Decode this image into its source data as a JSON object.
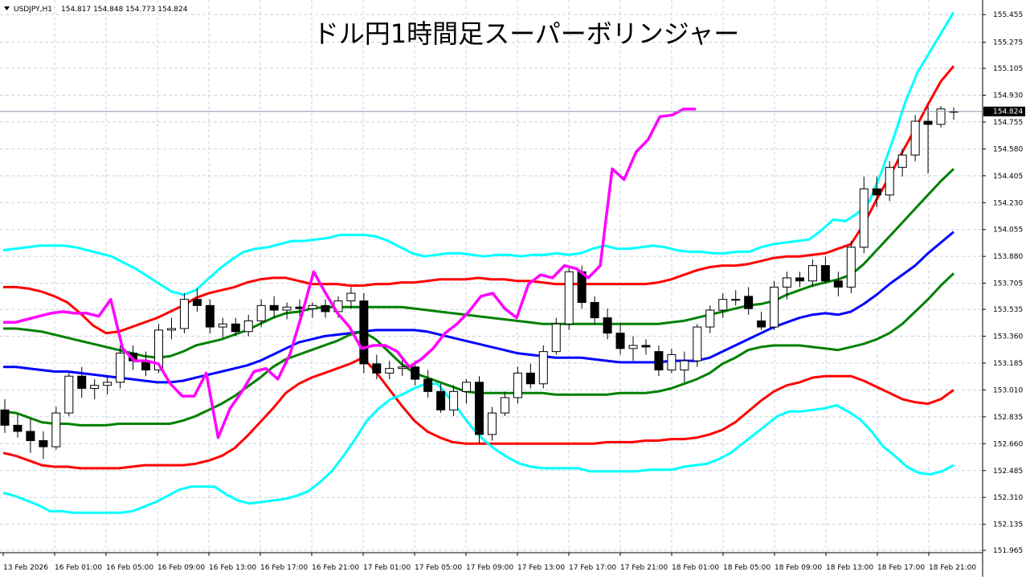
{
  "header": {
    "symbol_text": "USDJPY,H1",
    "ohlc_text": "154.817 154.848 154.773 154.824",
    "collapse_icon": "triangle-down-icon"
  },
  "chart_title": "ドル円1時間足スーパーボリンジャー",
  "current_price_label": "154.824",
  "colors": {
    "background": "#ffffff",
    "grid": "#c8d4e0",
    "candle_up": "#ffffff",
    "candle_down": "#000000",
    "sma": "#0000ff",
    "band1": "#008000",
    "band2": "#ff0000",
    "band3": "#00ffff",
    "chikou": "#ff00ff",
    "current_price_line": "#8a9bb0"
  },
  "chart_data": {
    "type": "line",
    "title": "ドル円1時間足スーパーボリンジャー",
    "ylim": [
      151.95,
      155.55
    ],
    "y_ticks": [
      "155.455",
      "155.275",
      "155.105",
      "154.930",
      "154.755",
      "154.580",
      "154.405",
      "154.230",
      "154.055",
      "153.880",
      "153.705",
      "153.535",
      "153.360",
      "153.185",
      "153.010",
      "152.835",
      "152.660",
      "152.485",
      "152.310",
      "152.135",
      "151.965"
    ],
    "x_tick_labels": [
      "13 Feb 2026",
      "16 Feb 01:00",
      "16 Feb 05:00",
      "16 Feb 09:00",
      "16 Feb 13:00",
      "16 Feb 17:00",
      "16 Feb 21:00",
      "17 Feb 01:00",
      "17 Feb 05:00",
      "17 Feb 09:00",
      "17 Feb 13:00",
      "17 Feb 17:00",
      "17 Feb 21:00",
      "18 Feb 01:00",
      "18 Feb 05:00",
      "18 Feb 09:00",
      "18 Feb 13:00",
      "18 Feb 17:00",
      "18 Feb 21:00"
    ],
    "current_price": 154.824,
    "candles": [
      [
        152.88,
        152.95,
        152.73,
        152.78
      ],
      [
        152.78,
        152.85,
        152.7,
        152.74
      ],
      [
        152.74,
        152.82,
        152.6,
        152.68
      ],
      [
        152.68,
        152.74,
        152.56,
        152.64
      ],
      [
        152.64,
        152.9,
        152.62,
        152.86
      ],
      [
        152.86,
        153.12,
        152.84,
        153.1
      ],
      [
        153.1,
        153.16,
        152.96,
        153.02
      ],
      [
        153.02,
        153.08,
        152.95,
        153.04
      ],
      [
        153.04,
        153.1,
        152.98,
        153.06
      ],
      [
        153.06,
        153.3,
        153.02,
        153.25
      ],
      [
        153.25,
        153.3,
        153.14,
        153.2
      ],
      [
        153.2,
        153.26,
        153.1,
        153.14
      ],
      [
        153.14,
        153.44,
        153.12,
        153.4
      ],
      [
        153.4,
        153.48,
        153.34,
        153.41
      ],
      [
        153.41,
        153.64,
        153.38,
        153.6
      ],
      [
        153.6,
        153.67,
        153.52,
        153.56
      ],
      [
        153.56,
        153.6,
        153.38,
        153.42
      ],
      [
        153.42,
        153.48,
        153.35,
        153.44
      ],
      [
        153.44,
        153.48,
        153.36,
        153.39
      ],
      [
        153.39,
        153.5,
        153.36,
        153.46
      ],
      [
        153.46,
        153.6,
        153.42,
        153.56
      ],
      [
        153.56,
        153.62,
        153.48,
        153.53
      ],
      [
        153.53,
        153.58,
        153.47,
        153.55
      ],
      [
        153.55,
        153.6,
        153.49,
        153.54
      ],
      [
        153.54,
        153.58,
        153.48,
        153.56
      ],
      [
        153.56,
        153.6,
        153.48,
        153.52
      ],
      [
        153.52,
        153.62,
        153.48,
        153.59
      ],
      [
        153.59,
        153.68,
        153.54,
        153.64
      ],
      [
        153.59,
        153.64,
        153.12,
        153.18
      ],
      [
        153.18,
        153.24,
        153.08,
        153.12
      ],
      [
        153.12,
        153.2,
        153.08,
        153.15
      ],
      [
        153.15,
        153.22,
        153.1,
        153.16
      ],
      [
        153.16,
        153.2,
        153.04,
        153.08
      ],
      [
        153.08,
        153.14,
        152.96,
        153.0
      ],
      [
        153.0,
        153.05,
        152.86,
        152.88
      ],
      [
        152.88,
        153.04,
        152.84,
        153.0
      ],
      [
        153.0,
        153.08,
        152.92,
        153.06
      ],
      [
        153.06,
        153.1,
        152.66,
        152.72
      ],
      [
        152.72,
        152.9,
        152.68,
        152.86
      ],
      [
        152.86,
        153.0,
        152.84,
        152.96
      ],
      [
        152.96,
        153.16,
        152.92,
        153.12
      ],
      [
        153.12,
        153.18,
        153.02,
        153.05
      ],
      [
        153.05,
        153.3,
        153.02,
        153.26
      ],
      [
        153.26,
        153.48,
        153.24,
        153.44
      ],
      [
        153.44,
        153.82,
        153.4,
        153.78
      ],
      [
        153.78,
        153.82,
        153.54,
        153.58
      ],
      [
        153.58,
        153.62,
        153.44,
        153.48
      ],
      [
        153.48,
        153.54,
        153.34,
        153.38
      ],
      [
        153.38,
        153.44,
        153.24,
        153.28
      ],
      [
        153.28,
        153.36,
        153.2,
        153.3
      ],
      [
        153.3,
        153.34,
        153.24,
        153.29
      ],
      [
        153.26,
        153.3,
        153.1,
        153.14
      ],
      [
        153.14,
        153.28,
        153.12,
        153.24
      ],
      [
        153.14,
        153.26,
        153.06,
        153.2
      ],
      [
        153.2,
        153.44,
        153.16,
        153.42
      ],
      [
        153.42,
        153.56,
        153.38,
        153.53
      ],
      [
        153.53,
        153.64,
        153.48,
        153.6
      ],
      [
        153.6,
        153.66,
        153.56,
        153.6
      ],
      [
        153.62,
        153.68,
        153.5,
        153.54
      ],
      [
        153.46,
        153.52,
        153.4,
        153.42
      ],
      [
        153.42,
        153.72,
        153.4,
        153.68
      ],
      [
        153.68,
        153.78,
        153.6,
        153.74
      ],
      [
        153.74,
        153.78,
        153.68,
        153.72
      ],
      [
        153.72,
        153.86,
        153.68,
        153.82
      ],
      [
        153.82,
        153.88,
        153.7,
        153.72
      ],
      [
        153.72,
        153.78,
        153.62,
        153.68
      ],
      [
        153.68,
        153.98,
        153.64,
        153.94
      ],
      [
        153.94,
        154.4,
        153.9,
        154.32
      ],
      [
        154.32,
        154.4,
        154.2,
        154.28
      ],
      [
        154.28,
        154.5,
        154.24,
        154.46
      ],
      [
        154.46,
        154.58,
        154.4,
        154.54
      ],
      [
        154.54,
        154.8,
        154.5,
        154.76
      ],
      [
        154.76,
        154.86,
        154.42,
        154.74
      ],
      [
        154.74,
        154.86,
        154.72,
        154.84
      ],
      [
        154.82,
        154.85,
        154.77,
        154.824
      ]
    ],
    "series": [
      {
        "name": "",
        "color": "#0000ff",
        "values": [
          153.16,
          153.16,
          153.15,
          153.14,
          153.13,
          153.13,
          153.12,
          153.11,
          153.1,
          153.09,
          153.08,
          153.07,
          153.06,
          153.06,
          153.07,
          153.09,
          153.11,
          153.13,
          153.15,
          153.17,
          153.2,
          153.24,
          153.28,
          153.32,
          153.34,
          153.36,
          153.37,
          153.38,
          153.39,
          153.4,
          153.4,
          153.4,
          153.4,
          153.39,
          153.37,
          153.35,
          153.33,
          153.31,
          153.29,
          153.27,
          153.25,
          153.24,
          153.23,
          153.22,
          153.22,
          153.22,
          153.21,
          153.2,
          153.19,
          153.19,
          153.19,
          153.19,
          153.2,
          153.2,
          153.2,
          153.22,
          153.26,
          153.3,
          153.34,
          153.38,
          153.42,
          153.45,
          153.48,
          153.5,
          153.51,
          153.5,
          153.52,
          153.57,
          153.63,
          153.7,
          153.76,
          153.82,
          153.9,
          153.97,
          154.04
        ]
      },
      {
        "name": "",
        "color": "#008000",
        "values": [
          152.87,
          152.86,
          152.83,
          152.8,
          152.79,
          152.79,
          152.78,
          152.78,
          152.78,
          152.79,
          152.79,
          152.79,
          152.79,
          152.79,
          152.81,
          152.84,
          152.88,
          152.92,
          152.97,
          153.03,
          153.09,
          153.16,
          153.21,
          153.24,
          153.27,
          153.3,
          153.33,
          153.37,
          153.39,
          153.34,
          153.26,
          153.18,
          153.12,
          153.09,
          153.06,
          153.03,
          153.0,
          152.99,
          152.99,
          152.99,
          152.99,
          152.99,
          152.99,
          152.98,
          152.98,
          152.98,
          152.98,
          152.98,
          152.99,
          152.99,
          152.99,
          153.0,
          153.02,
          153.05,
          153.08,
          153.12,
          153.18,
          153.22,
          153.27,
          153.29,
          153.3,
          153.3,
          153.3,
          153.29,
          153.28,
          153.27,
          153.29,
          153.31,
          153.34,
          153.38,
          153.44,
          153.52,
          153.6,
          153.69,
          153.77
        ]
      },
      {
        "name": "",
        "color": "#008000",
        "values": [
          153.41,
          153.41,
          153.4,
          153.39,
          153.37,
          153.35,
          153.33,
          153.31,
          153.29,
          153.27,
          153.25,
          153.23,
          153.22,
          153.23,
          153.26,
          153.3,
          153.32,
          153.34,
          153.37,
          153.4,
          153.44,
          153.48,
          153.51,
          153.52,
          153.54,
          153.55,
          153.55,
          153.55,
          153.55,
          153.55,
          153.55,
          153.55,
          153.54,
          153.53,
          153.52,
          153.51,
          153.5,
          153.49,
          153.48,
          153.47,
          153.46,
          153.45,
          153.44,
          153.44,
          153.44,
          153.44,
          153.44,
          153.44,
          153.44,
          153.44,
          153.44,
          153.44,
          153.45,
          153.46,
          153.48,
          153.5,
          153.52,
          153.54,
          153.56,
          153.57,
          153.59,
          153.63,
          153.66,
          153.69,
          153.71,
          153.73,
          153.76,
          153.83,
          153.92,
          154.01,
          154.1,
          154.19,
          154.28,
          154.37,
          154.45
        ]
      },
      {
        "name": "",
        "color": "#ff0000",
        "values": [
          152.6,
          152.58,
          152.55,
          152.52,
          152.51,
          152.51,
          152.5,
          152.5,
          152.5,
          152.5,
          152.51,
          152.52,
          152.52,
          152.52,
          152.52,
          152.53,
          152.55,
          152.58,
          152.63,
          152.71,
          152.8,
          152.89,
          152.99,
          153.05,
          153.09,
          153.12,
          153.15,
          153.18,
          153.22,
          153.13,
          153.02,
          152.91,
          152.81,
          152.74,
          152.7,
          152.67,
          152.66,
          152.66,
          152.66,
          152.66,
          152.66,
          152.66,
          152.66,
          152.66,
          152.66,
          152.66,
          152.66,
          152.67,
          152.67,
          152.67,
          152.68,
          152.68,
          152.69,
          152.69,
          152.7,
          152.72,
          152.75,
          152.8,
          152.87,
          152.94,
          153.0,
          153.04,
          153.06,
          153.09,
          153.1,
          153.1,
          153.1,
          153.07,
          153.03,
          152.99,
          152.95,
          152.93,
          152.92,
          152.95,
          153.01
        ]
      },
      {
        "name": "",
        "color": "#ff0000",
        "values": [
          153.68,
          153.68,
          153.67,
          153.65,
          153.62,
          153.58,
          153.51,
          153.43,
          153.38,
          153.39,
          153.42,
          153.45,
          153.48,
          153.52,
          153.56,
          153.61,
          153.64,
          153.66,
          153.68,
          153.71,
          153.73,
          153.74,
          153.74,
          153.72,
          153.7,
          153.7,
          153.7,
          153.69,
          153.69,
          153.7,
          153.7,
          153.71,
          153.71,
          153.72,
          153.73,
          153.73,
          153.73,
          153.74,
          153.73,
          153.73,
          153.72,
          153.72,
          153.71,
          153.7,
          153.7,
          153.7,
          153.7,
          153.7,
          153.7,
          153.7,
          153.7,
          153.71,
          153.73,
          153.76,
          153.79,
          153.81,
          153.82,
          153.82,
          153.83,
          153.85,
          153.87,
          153.88,
          153.88,
          153.89,
          153.9,
          153.93,
          153.96,
          154.09,
          154.25,
          154.4,
          154.56,
          154.71,
          154.87,
          155.02,
          155.12
        ]
      },
      {
        "name": "",
        "color": "#00ffff",
        "values": [
          152.34,
          152.32,
          152.29,
          152.26,
          152.22,
          152.22,
          152.21,
          152.21,
          152.21,
          152.21,
          152.21,
          152.22,
          152.25,
          152.28,
          152.32,
          152.36,
          152.38,
          152.38,
          152.38,
          152.33,
          152.29,
          152.27,
          152.28,
          152.29,
          152.3,
          152.32,
          152.35,
          152.41,
          152.48,
          152.58,
          152.69,
          152.81,
          152.89,
          152.95,
          152.98,
          153.02,
          153.05,
          153.05,
          152.96,
          152.86,
          152.76,
          152.68,
          152.62,
          152.57,
          152.53,
          152.51,
          152.5,
          152.5,
          152.5,
          152.5,
          152.48,
          152.48,
          152.48,
          152.48,
          152.48,
          152.49,
          152.49,
          152.49,
          152.51,
          152.52,
          152.53,
          152.56,
          152.6,
          152.66,
          152.72,
          152.78,
          152.84,
          152.87,
          152.87,
          152.88,
          152.89,
          152.91,
          152.87,
          152.82,
          152.74,
          152.64,
          152.58,
          152.51,
          152.47,
          152.46,
          152.48,
          152.52
        ]
      },
      {
        "name": "",
        "color": "#00ffff",
        "values": [
          153.92,
          153.93,
          153.94,
          153.95,
          153.95,
          153.95,
          153.94,
          153.92,
          153.9,
          153.88,
          153.84,
          153.8,
          153.75,
          153.7,
          153.65,
          153.63,
          153.66,
          153.73,
          153.8,
          153.86,
          153.91,
          153.93,
          153.94,
          153.96,
          153.98,
          153.98,
          153.99,
          154.0,
          154.02,
          154.02,
          154.02,
          154.01,
          153.98,
          153.94,
          153.9,
          153.88,
          153.89,
          153.9,
          153.9,
          153.89,
          153.88,
          153.89,
          153.89,
          153.88,
          153.89,
          153.89,
          153.9,
          153.89,
          153.9,
          153.93,
          153.95,
          153.93,
          153.93,
          153.94,
          153.95,
          153.94,
          153.92,
          153.91,
          153.91,
          153.9,
          153.9,
          153.91,
          153.91,
          153.94,
          153.96,
          153.97,
          153.98,
          153.99,
          154.05,
          154.12,
          154.11,
          154.16,
          154.24,
          154.43,
          154.65,
          154.89,
          155.08,
          155.21,
          155.34,
          155.47
        ]
      },
      {
        "name": "",
        "color": "#ff00ff",
        "values": [
          153.45,
          153.45,
          153.47,
          153.49,
          153.51,
          153.52,
          153.51,
          153.51,
          153.49,
          153.6,
          153.28,
          153.2,
          153.2,
          153.18,
          153.05,
          152.97,
          152.97,
          153.12,
          152.7,
          152.89,
          153.0,
          153.13,
          153.15,
          153.08,
          153.24,
          153.5,
          153.78,
          153.64,
          153.51,
          153.42,
          153.28,
          153.3,
          153.3,
          153.26,
          153.16,
          153.21,
          153.28,
          153.38,
          153.44,
          153.52,
          153.62,
          153.64,
          153.54,
          153.48,
          153.7,
          153.76,
          153.74,
          153.82,
          153.8,
          153.74,
          153.82,
          154.45,
          154.38,
          154.56,
          154.64,
          154.79,
          154.8,
          154.84,
          154.84
        ]
      }
    ]
  }
}
